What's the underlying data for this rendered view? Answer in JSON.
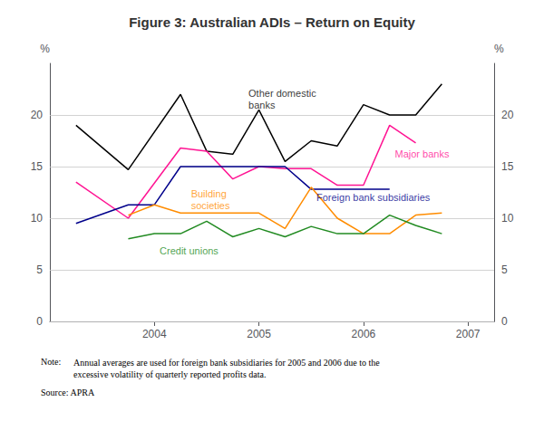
{
  "chart_data": {
    "type": "line",
    "title": "Figure 3: Australian ADIs – Return on Equity",
    "ylabel": "%",
    "y2label": "%",
    "xlim": [
      2003.0,
      2007.25
    ],
    "xticks": [
      2004,
      2005,
      2006,
      2007
    ],
    "ylim": [
      0,
      25
    ],
    "yticks": [
      0,
      5,
      10,
      15,
      20
    ],
    "y2lim": [
      0,
      25
    ],
    "y2ticks": [
      0,
      5,
      10,
      15,
      20
    ],
    "grid": true,
    "series": [
      {
        "name": "Other domestic\nbanks",
        "color": "#000000",
        "x": [
          2003.25,
          2003.75,
          2004.25,
          2004.5,
          2004.75,
          2005.0,
          2005.25,
          2005.5,
          2005.75,
          2006.0,
          2006.25,
          2006.5,
          2006.75
        ],
        "values": [
          19.0,
          14.7,
          22.0,
          16.5,
          16.2,
          20.5,
          15.5,
          17.5,
          17.0,
          21.0,
          20.0,
          20.0,
          23.0
        ]
      },
      {
        "name": "Major banks",
        "color": "#ff1493",
        "x": [
          2003.25,
          2003.75,
          2004.25,
          2004.5,
          2004.75,
          2005.0,
          2005.25,
          2005.5,
          2005.75,
          2006.0,
          2006.25,
          2006.5
        ],
        "values": [
          13.5,
          10.0,
          16.8,
          16.5,
          13.8,
          15.0,
          14.8,
          14.8,
          13.2,
          13.2,
          19.0,
          17.3
        ]
      },
      {
        "name": "Foreign bank subsidiaries",
        "color": "#00008B",
        "x": [
          2003.25,
          2003.75,
          2004.0,
          2004.25,
          2004.5,
          2004.75,
          2005.0,
          2005.25,
          2005.5,
          2005.75,
          2006.0,
          2006.25
        ],
        "values": [
          9.5,
          11.3,
          11.3,
          15.0,
          15.0,
          15.0,
          15.0,
          15.0,
          12.8,
          12.8,
          12.8,
          12.8
        ]
      },
      {
        "name": "Building\nsocieties",
        "color": "#FF8C00",
        "x": [
          2003.75,
          2004.0,
          2004.25,
          2004.5,
          2004.75,
          2005.0,
          2005.25,
          2005.5,
          2005.75,
          2006.0,
          2006.25,
          2006.5,
          2006.75
        ],
        "values": [
          10.3,
          11.3,
          10.5,
          10.5,
          10.5,
          10.5,
          9.0,
          13.0,
          10.0,
          8.5,
          8.5,
          10.3,
          10.5
        ]
      },
      {
        "name": "Credit unions",
        "color": "#228B22",
        "x": [
          2003.75,
          2004.0,
          2004.25,
          2004.5,
          2004.75,
          2005.0,
          2005.25,
          2005.5,
          2005.75,
          2006.0,
          2006.25,
          2006.5,
          2006.75
        ],
        "values": [
          8.0,
          8.5,
          8.5,
          9.7,
          8.2,
          9.0,
          8.2,
          9.2,
          8.5,
          8.5,
          10.3,
          9.3,
          8.5
        ]
      }
    ],
    "annotations": [
      {
        "text": "Other domestic\nbanks",
        "x": 2004.9,
        "y": 21.5,
        "color": "#000000"
      },
      {
        "text": "Major banks",
        "x": 2006.3,
        "y": 16.2,
        "color": "#ff1493"
      },
      {
        "text": "Foreign bank subsidiaries",
        "x": 2005.55,
        "y": 12.0,
        "color": "#00008B"
      },
      {
        "text": "Building\nsocieties",
        "x": 2004.35,
        "y": 11.8,
        "color": "#FF8C00"
      },
      {
        "text": "Credit unions",
        "x": 2004.05,
        "y": 6.8,
        "color": "#228B22"
      }
    ],
    "note_label": "Note:",
    "note_body": "Annual averages are used for foreign bank subsidiaries for 2005 and 2006 due to the\nexcessive volatility of quarterly reported profits data.",
    "source": "Source: APRA"
  }
}
